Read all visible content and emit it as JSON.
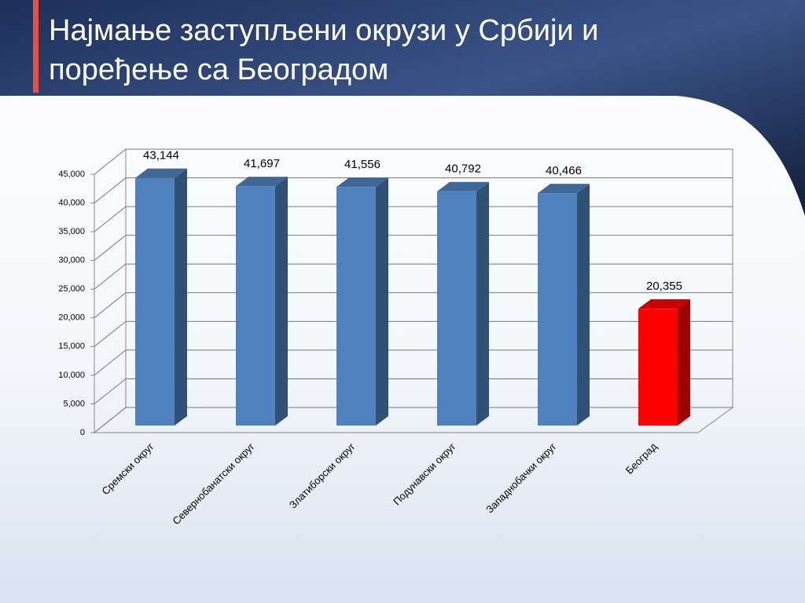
{
  "chart_data": {
    "type": "bar3d",
    "title": "Најмање заступљени окрузи у Србији и поређење са Београдом",
    "categories": [
      "Сремски округ",
      "Севернобанатски округ",
      "Златиборски округ",
      "Подунавски округ",
      "Западнобачки округ",
      "Београд"
    ],
    "values": [
      43144,
      41697,
      41556,
      40792,
      40466,
      20355
    ],
    "value_labels": [
      "43,144",
      "41,697",
      "41,556",
      "40,792",
      "40,466",
      "20,355"
    ],
    "colors": [
      "#4f81bd",
      "#4f81bd",
      "#4f81bd",
      "#4f81bd",
      "#4f81bd",
      "#ff0000"
    ],
    "ylim": [
      0,
      45000
    ],
    "yticks": [
      0,
      {
        "value": 5000,
        "label": "5,000"
      },
      {
        "value": 10000,
        "label": "10,000"
      },
      {
        "value": 15000,
        "label": "15,000"
      },
      {
        "value": 20000,
        "label": "20,000"
      },
      {
        "value": 25000,
        "label": "25,000"
      },
      {
        "value": 30000,
        "label": "30,000"
      },
      {
        "value": 35000,
        "label": "35,000"
      },
      {
        "value": 40000,
        "label": "40,000"
      },
      {
        "value": 45000,
        "label": "45,000"
      }
    ],
    "grid": true
  }
}
